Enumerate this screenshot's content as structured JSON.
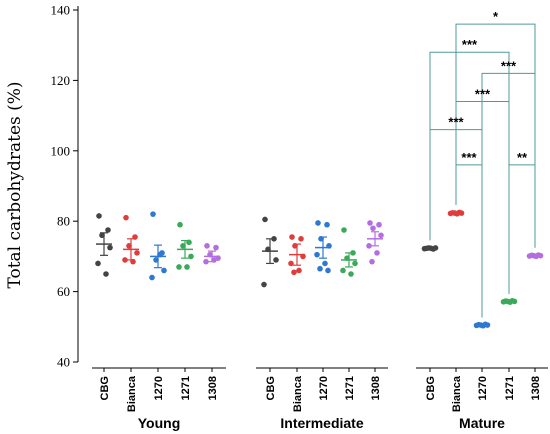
{
  "chart_data": {
    "type": "scatter",
    "ylabel": "Total carbohydrates (%)",
    "ylim": [
      40,
      140
    ],
    "yticks": [
      40,
      60,
      80,
      100,
      120,
      140
    ],
    "grid": false,
    "colors": {
      "CBG": "#444444",
      "Bianca": "#e03c3c",
      "1270": "#2e78d2",
      "1271": "#3aaa5a",
      "1308": "#b46ee0",
      "bracket": "#4f9a9a"
    },
    "groups": [
      {
        "name": "Young",
        "categories": [
          {
            "label": "CBG",
            "mean": 73.5,
            "err": 3.2,
            "points": [
              81.5,
              77.5,
              76,
              72.5,
              68,
              65
            ]
          },
          {
            "label": "Bianca",
            "mean": 72,
            "err": 3,
            "points": [
              81,
              75.5,
              73,
              71,
              69,
              68.5
            ]
          },
          {
            "label": "1270",
            "mean": 70,
            "err": 3.2,
            "points": [
              82,
              71,
              69,
              66,
              64,
              70.5
            ]
          },
          {
            "label": "1271",
            "mean": 72,
            "err": 2.5,
            "points": [
              79,
              74,
              73,
              70,
              67,
              67
            ]
          },
          {
            "label": "1308",
            "mean": 70,
            "err": 1.5,
            "points": [
              73,
              72.5,
              70.5,
              69.5,
              68.5,
              69
            ]
          }
        ]
      },
      {
        "name": "Intermediate",
        "categories": [
          {
            "label": "CBG",
            "mean": 71.5,
            "err": 3.5,
            "points": [
              80.5,
              75,
              72,
              69,
              62
            ]
          },
          {
            "label": "Bianca",
            "mean": 70.5,
            "err": 3,
            "points": [
              75.5,
              75,
              73,
              70,
              68,
              66,
              65.5
            ]
          },
          {
            "label": "1270",
            "mean": 72.5,
            "err": 3,
            "points": [
              79.5,
              79,
              75,
              73,
              70.5,
              68,
              66.5,
              66
            ]
          },
          {
            "label": "1271",
            "mean": 69,
            "err": 2,
            "points": [
              77.5,
              71,
              69.5,
              68,
              66,
              65
            ]
          },
          {
            "label": "1308",
            "mean": 75,
            "err": 2,
            "points": [
              79.5,
              79,
              78,
              76,
              73,
              71,
              68.5
            ]
          }
        ]
      },
      {
        "name": "Mature",
        "categories": [
          {
            "label": "CBG",
            "mean": 72.3,
            "err": 0.3,
            "points": [
              72.2,
              72.3,
              72.4,
              72.3,
              72.1,
              72.4
            ]
          },
          {
            "label": "Bianca",
            "mean": 82.3,
            "err": 0.3,
            "points": [
              82.2,
              82.4,
              82.3,
              82.1,
              82.5,
              82.3
            ]
          },
          {
            "label": "1270",
            "mean": 50.5,
            "err": 0.2,
            "points": [
              50.4,
              50.6,
              50.5,
              50.3,
              50.7,
              50.5
            ]
          },
          {
            "label": "1271",
            "mean": 57.2,
            "err": 0.2,
            "points": [
              57.1,
              57.3,
              57.2,
              57.0,
              57.4,
              57.2
            ]
          },
          {
            "label": "1308",
            "mean": 70.2,
            "err": 0.3,
            "points": [
              70.1,
              70.3,
              70.2,
              70.0,
              70.4,
              70.2
            ]
          }
        ]
      }
    ],
    "significance": [
      {
        "from": "Bianca",
        "to": "1308",
        "label": "*",
        "height": 136
      },
      {
        "from": "CBG",
        "to": "1271",
        "label": "***",
        "height": 128
      },
      {
        "from": "1270",
        "to": "1308",
        "label": "***",
        "height": 122
      },
      {
        "from": "Bianca",
        "to": "1271",
        "label": "***",
        "height": 114
      },
      {
        "from": "CBG",
        "to": "1270",
        "label": "***",
        "height": 106
      },
      {
        "from": "Bianca",
        "to": "1270",
        "label": "***",
        "height": 96
      },
      {
        "from": "1271",
        "to": "1308",
        "label": "**",
        "height": 96
      }
    ]
  }
}
